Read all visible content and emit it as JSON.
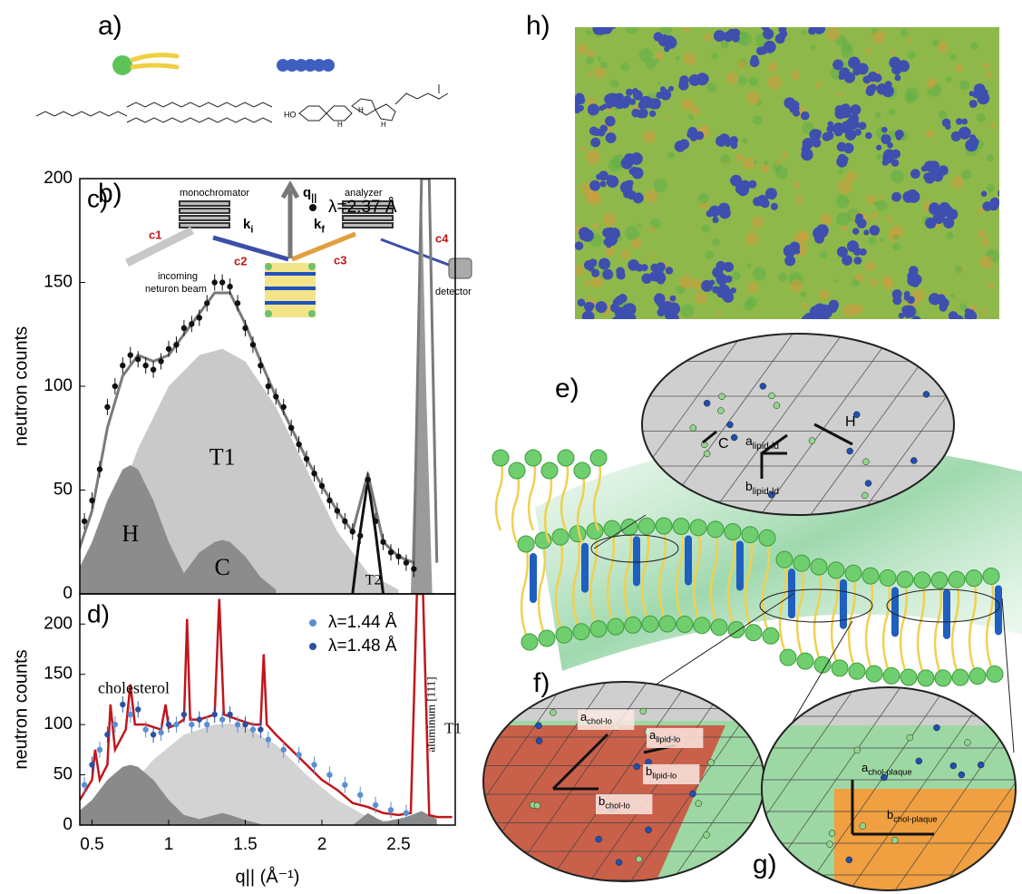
{
  "figure": {
    "panel_labels": {
      "a": "a)",
      "b": "b)",
      "e": "e)",
      "f": "f)",
      "g": "g)",
      "h": "h)"
    },
    "a": {
      "hydroxyl": "HO",
      "h1": "H",
      "h2": "H",
      "h3": "H"
    },
    "b": {
      "monochromator": "monochromator",
      "analyzer": "analyzer",
      "beam1": "incoming",
      "beam2": "neturon beam",
      "detector": "detector",
      "c1": "c1",
      "c2": "c2",
      "c3": "c3",
      "c4": "c4",
      "q": {
        "main": "q",
        "sub": "||"
      },
      "ki": {
        "main": "k",
        "sub": "i"
      },
      "kf": {
        "main": "k",
        "sub": "f"
      }
    },
    "e": {
      "c": "C",
      "h": "H",
      "a": {
        "main": "a",
        "sub": "lipid-ld"
      },
      "b": {
        "main": "b",
        "sub": "lipid-ld"
      }
    },
    "f": {
      "a_chol": {
        "main": "a",
        "sub": "chol-lo"
      },
      "a_lipid": {
        "main": "a",
        "sub": "lipid-lo"
      },
      "b_lipid": {
        "main": "b",
        "sub": "lipid-lo"
      },
      "b_chol": {
        "main": "b",
        "sub": "chol-lo"
      }
    },
    "g": {
      "a": {
        "main": "a",
        "sub": "chol-plaque"
      },
      "b": {
        "main": "b",
        "sub": "chol-plaque"
      }
    }
  },
  "chart_data": [
    {
      "type": "line",
      "label": "c)",
      "y_label": "neutron counts",
      "xlim": [
        0.42,
        2.87
      ],
      "ylim": [
        0,
        200
      ],
      "yticks": [
        0,
        50,
        100,
        150,
        200
      ],
      "series": [
        {
          "kind": "area",
          "name": "T1",
          "color": "#c9c9c9",
          "x": [
            0.4,
            0.6,
            0.8,
            1.0,
            1.2,
            1.35,
            1.5,
            1.7,
            1.9,
            2.1,
            2.3,
            2.5
          ],
          "values": [
            5,
            30,
            70,
            100,
            115,
            118,
            112,
            90,
            60,
            30,
            10,
            2
          ]
        },
        {
          "kind": "area",
          "name": "H",
          "color": "#8c8c8c",
          "x": [
            0.4,
            0.5,
            0.6,
            0.7,
            0.75,
            0.8,
            0.9,
            1.0,
            1.1,
            1.2
          ],
          "values": [
            10,
            25,
            45,
            60,
            62,
            60,
            45,
            25,
            10,
            3
          ]
        },
        {
          "kind": "area",
          "name": "C",
          "color": "#8c8c8c",
          "x": [
            1.0,
            1.1,
            1.2,
            1.3,
            1.35,
            1.4,
            1.5,
            1.6,
            1.7
          ],
          "values": [
            3,
            10,
            20,
            25,
            26,
            25,
            18,
            8,
            2
          ]
        },
        {
          "kind": "area",
          "color": "#9a9a9a",
          "x": [
            2.58,
            2.62,
            2.65,
            2.68,
            2.72
          ],
          "values": [
            0,
            100,
            200,
            100,
            0
          ]
        },
        {
          "kind": "line",
          "name": "T2",
          "color": "#111111",
          "x": [
            2.2,
            2.25,
            2.3,
            2.35,
            2.4
          ],
          "values": [
            0,
            30,
            55,
            30,
            0
          ]
        },
        {
          "kind": "line",
          "color": "#7a7a7a",
          "x": [
            0.4,
            0.5,
            0.6,
            0.7,
            0.8,
            0.9,
            1.0,
            1.1,
            1.2,
            1.3,
            1.4,
            1.5,
            1.6,
            1.7,
            1.8,
            1.9,
            2.0,
            2.1,
            2.2,
            2.3,
            2.4,
            2.5,
            2.6,
            2.65,
            2.7,
            2.75
          ],
          "values": [
            18,
            40,
            80,
            105,
            115,
            112,
            115,
            125,
            135,
            145,
            145,
            130,
            112,
            95,
            80,
            65,
            52,
            40,
            30,
            58,
            25,
            18,
            15,
            200,
            200,
            15
          ]
        },
        {
          "kind": "points",
          "name": "λ=2.37 Å",
          "color": "#111111",
          "x": [
            0.45,
            0.5,
            0.55,
            0.6,
            0.65,
            0.7,
            0.75,
            0.8,
            0.85,
            0.9,
            0.95,
            1.0,
            1.05,
            1.1,
            1.15,
            1.2,
            1.25,
            1.3,
            1.35,
            1.4,
            1.45,
            1.5,
            1.55,
            1.6,
            1.65,
            1.7,
            1.75,
            1.8,
            1.85,
            1.9,
            1.95,
            2.0,
            2.05,
            2.1,
            2.15,
            2.2,
            2.25,
            2.3,
            2.35,
            2.4,
            2.45,
            2.5,
            2.55,
            2.6
          ],
          "values": [
            35,
            45,
            60,
            90,
            100,
            110,
            115,
            113,
            110,
            108,
            112,
            118,
            120,
            128,
            130,
            133,
            140,
            150,
            150,
            148,
            140,
            128,
            120,
            110,
            100,
            95,
            90,
            80,
            72,
            65,
            58,
            52,
            45,
            40,
            35,
            30,
            28,
            55,
            35,
            25,
            20,
            18,
            15,
            12
          ]
        }
      ]
    },
    {
      "type": "line",
      "label": "d)",
      "y_label": "neutron counts",
      "x_label": "q|| (Å⁻¹)",
      "annotations": [
        "cholesterol",
        "aluminum [111]",
        "T1"
      ],
      "xlim": [
        0.42,
        2.87
      ],
      "ylim": [
        0,
        230
      ],
      "yticks": [
        0,
        50,
        100,
        150,
        200
      ],
      "xticks": [
        0.5,
        1,
        1.5,
        2,
        2.5
      ],
      "series": [
        {
          "kind": "area",
          "color": "#d3d3d3",
          "x": [
            0.5,
            0.7,
            0.9,
            1.1,
            1.3,
            1.4,
            1.5,
            1.7,
            1.9,
            2.1,
            2.3,
            2.5
          ],
          "values": [
            5,
            30,
            65,
            90,
            100,
            101,
            98,
            80,
            50,
            25,
            8,
            2
          ]
        },
        {
          "kind": "area",
          "color": "#8a8a8a",
          "x": [
            0.4,
            0.5,
            0.6,
            0.7,
            0.75,
            0.8,
            0.9,
            1.0,
            1.1,
            1.2,
            1.3,
            1.35,
            1.4,
            1.5,
            1.6
          ],
          "values": [
            12,
            25,
            45,
            58,
            60,
            58,
            45,
            25,
            10,
            6,
            10,
            12,
            10,
            5,
            1
          ]
        },
        {
          "kind": "area",
          "color": "#8a8a8a",
          "x": [
            2.2,
            2.3,
            2.4,
            2.55,
            2.65,
            2.75
          ],
          "values": [
            0,
            12,
            3,
            8,
            14,
            6
          ]
        },
        {
          "kind": "line",
          "color": "#c0161c",
          "x": [
            0.4,
            0.5,
            0.52,
            0.55,
            0.6,
            0.62,
            0.65,
            0.72,
            0.75,
            0.78,
            0.85,
            0.95,
            0.98,
            1.0,
            1.05,
            1.1,
            1.12,
            1.14,
            1.2,
            1.3,
            1.33,
            1.36,
            1.45,
            1.55,
            1.6,
            1.62,
            1.64,
            1.7,
            1.8,
            1.9,
            2.0,
            2.1,
            2.2,
            2.3,
            2.4,
            2.5,
            2.58,
            2.62,
            2.66,
            2.7,
            2.75,
            2.85
          ],
          "values": [
            20,
            45,
            75,
            45,
            60,
            120,
            75,
            95,
            140,
            100,
            100,
            95,
            120,
            97,
            100,
            105,
            205,
            105,
            105,
            110,
            225,
            110,
            105,
            100,
            100,
            170,
            100,
            90,
            75,
            60,
            45,
            35,
            22,
            18,
            12,
            10,
            12,
            230,
            230,
            10,
            8,
            8
          ]
        },
        {
          "kind": "points",
          "name": "λ=1.44 Å",
          "color": "#5b8fd0",
          "x": [
            0.45,
            0.55,
            0.65,
            0.75,
            0.85,
            0.95,
            1.05,
            1.15,
            1.25,
            1.35,
            1.45,
            1.55,
            1.65,
            1.75,
            1.85,
            1.95,
            2.05,
            2.15,
            2.25,
            2.35,
            2.45,
            2.55
          ],
          "values": [
            40,
            75,
            100,
            110,
            95,
            92,
            100,
            100,
            100,
            105,
            100,
            95,
            85,
            75,
            70,
            60,
            50,
            40,
            30,
            20,
            15,
            12
          ]
        },
        {
          "kind": "points",
          "name": "λ=1.48 Å",
          "color": "#2e4fa0",
          "x": [
            0.5,
            0.6,
            0.7,
            0.8,
            0.9,
            1.0,
            1.1,
            1.2,
            1.3,
            1.4,
            1.5,
            1.6
          ],
          "values": [
            60,
            90,
            120,
            115,
            90,
            100,
            110,
            105,
            110,
            110,
            100,
            95
          ]
        }
      ]
    }
  ]
}
